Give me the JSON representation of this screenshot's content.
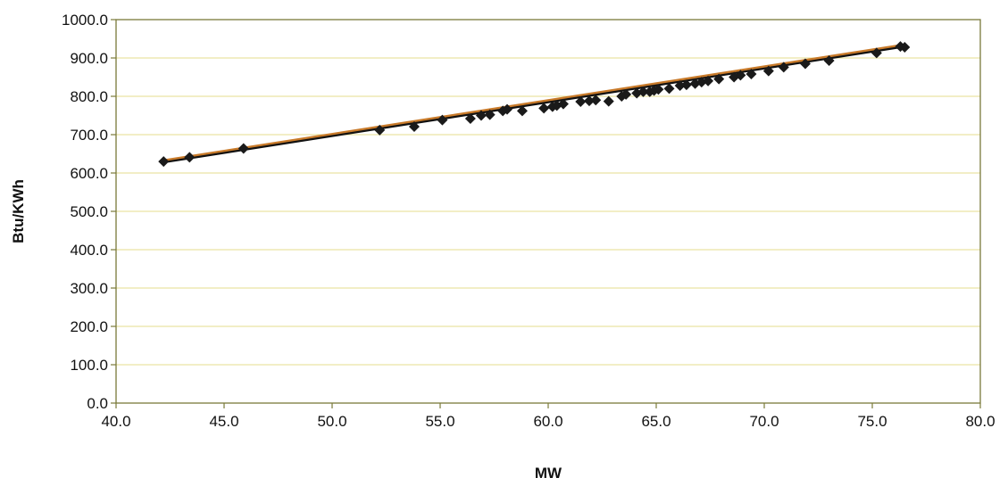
{
  "chart_data": {
    "type": "scatter",
    "title": "",
    "xlabel": "MW",
    "ylabel": "Btu/KWh",
    "xlim": [
      40,
      80
    ],
    "ylim": [
      0,
      1000
    ],
    "x_ticks": [
      40,
      45,
      50,
      55,
      60,
      65,
      70,
      75,
      80
    ],
    "y_ticks": [
      0,
      100,
      200,
      300,
      400,
      500,
      600,
      700,
      800,
      900,
      1000
    ],
    "x_tick_labels": [
      "40.0",
      "45.0",
      "50.0",
      "55.0",
      "60.0",
      "65.0",
      "70.0",
      "75.0",
      "80.0"
    ],
    "y_tick_labels": [
      "0.0",
      "100.0",
      "200.0",
      "300.0",
      "400.0",
      "500.0",
      "600.0",
      "700.0",
      "800.0",
      "900.0",
      "1000.0"
    ],
    "grid": "horizontal",
    "legend": "none",
    "colors": {
      "grid": "#e9e3a4",
      "frame": "#7a7a3a",
      "marker": "#1a1a1a",
      "trendline_outer": "#c87a2a",
      "trendline_inner": "#111111"
    },
    "trendline": {
      "x": [
        42.2,
        76.5
      ],
      "y": [
        630,
        932
      ]
    },
    "series": [
      {
        "marker": "diamond",
        "points": [
          [
            42.2,
            630
          ],
          [
            43.4,
            641
          ],
          [
            45.9,
            664
          ],
          [
            52.2,
            712
          ],
          [
            53.8,
            721
          ],
          [
            55.1,
            738
          ],
          [
            56.4,
            742
          ],
          [
            56.9,
            750
          ],
          [
            57.3,
            752
          ],
          [
            57.9,
            762
          ],
          [
            58.1,
            766
          ],
          [
            58.8,
            762
          ],
          [
            59.8,
            769
          ],
          [
            60.2,
            773
          ],
          [
            60.4,
            776
          ],
          [
            60.7,
            780
          ],
          [
            61.5,
            786
          ],
          [
            61.9,
            788
          ],
          [
            62.2,
            790
          ],
          [
            62.8,
            787
          ],
          [
            63.4,
            800
          ],
          [
            63.6,
            805
          ],
          [
            64.1,
            808
          ],
          [
            64.4,
            812
          ],
          [
            64.7,
            812
          ],
          [
            64.9,
            815
          ],
          [
            65.1,
            818
          ],
          [
            65.6,
            820
          ],
          [
            66.1,
            828
          ],
          [
            66.4,
            830
          ],
          [
            66.8,
            833
          ],
          [
            67.1,
            837
          ],
          [
            67.4,
            840
          ],
          [
            67.9,
            845
          ],
          [
            68.6,
            850
          ],
          [
            68.9,
            855
          ],
          [
            69.4,
            858
          ],
          [
            70.2,
            866
          ],
          [
            70.9,
            876
          ],
          [
            71.9,
            885
          ],
          [
            73.0,
            893
          ],
          [
            75.2,
            913
          ],
          [
            76.3,
            930
          ],
          [
            76.5,
            928
          ]
        ]
      }
    ]
  }
}
